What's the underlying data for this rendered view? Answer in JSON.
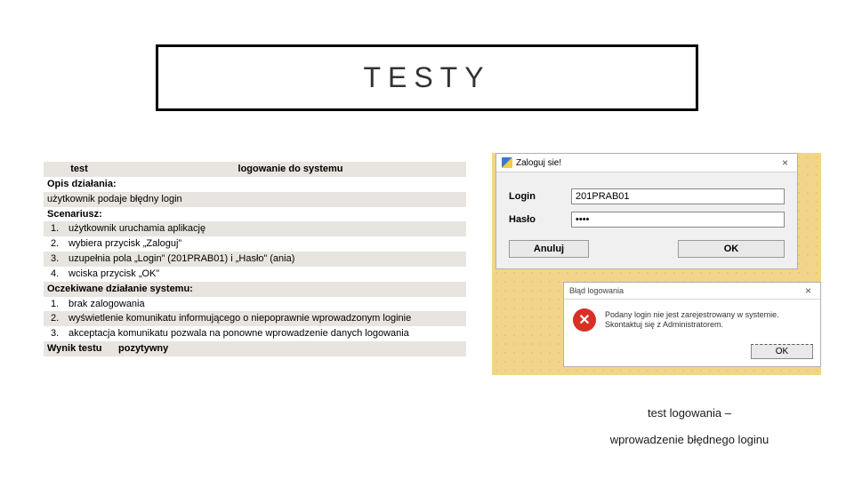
{
  "title": "TESTY",
  "table": {
    "header_left": "test",
    "header_right": "logowanie do systemu",
    "section_opis": "Opis działania:",
    "opis_line": "użytkownik podaje błędny login",
    "section_scen": "Scenariusz:",
    "scen": [
      {
        "n": "1.",
        "t": "użytkownik uruchamia aplikację"
      },
      {
        "n": "2.",
        "t": "wybiera przycisk „Zaloguj”"
      },
      {
        "n": "3.",
        "t": "uzupełnia pola „Login” (201PRAB01) i „Hasło” (ania)"
      },
      {
        "n": "4.",
        "t": "wciska przycisk „OK”"
      }
    ],
    "section_oczek": "Oczekiwane działanie systemu:",
    "oczek": [
      {
        "n": "1.",
        "t": "brak zalogowania"
      },
      {
        "n": "2.",
        "t": "wyświetlenie komunikatu informującego o niepoprawnie wprowadzonym loginie"
      },
      {
        "n": "3.",
        "t": "akceptacja komunikatu pozwala na ponowne wprowadzenie danych logowania"
      }
    ],
    "result_label": "Wynik testu",
    "result_value": "pozytywny"
  },
  "login_dialog": {
    "title": "Zaloguj sie!",
    "login_label": "Login",
    "login_value": "201PRAB01",
    "pass_label": "Hasło",
    "pass_value": "••••",
    "cancel": "Anuluj",
    "ok": "OK"
  },
  "error_dialog": {
    "title": "Błąd logowania",
    "icon_text": "✕",
    "message": "Podany login nie jest zarejestrowany w systemie. Skontaktuj się z Administratorem.",
    "ok": "OK"
  },
  "caption_line1": "test logowania –",
  "caption_line2": "wprowadzenie błędnego loginu"
}
